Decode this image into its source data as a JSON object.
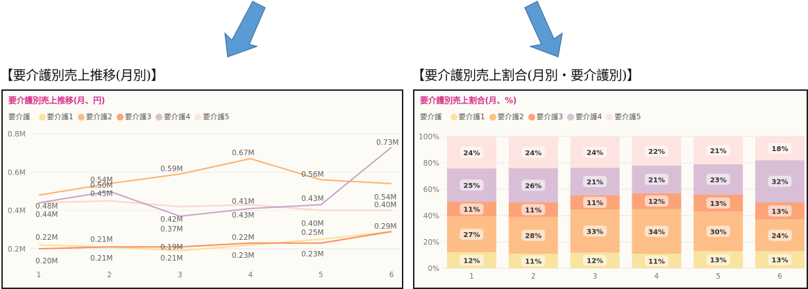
{
  "headings": {
    "left": "【要介護別売上推移(月別)】",
    "right": "【要介護別売上割合(月別・要介護別)】"
  },
  "colors": {
    "arrow_fill": "#5b9bd5",
    "arrow_stroke": "#41719c",
    "title": "#d6338a",
    "series": {
      "要介護1": "#f9e3a0",
      "要介護2": "#fdbf87",
      "要介護3": "#fca37a",
      "要介護4": "#d9bfd6",
      "要介護5": "#fde4e0"
    },
    "line_series": {
      "要介護1": "#fbe08a",
      "要介護2": "#fbb46f",
      "要介護3": "#f98e62",
      "要介護4": "#c9a4cc",
      "要介護5": "#fbd9d3"
    }
  },
  "left_panel": {
    "title": "要介護別売上推移(月、円)",
    "legend_title": "要介護",
    "legend": [
      "要介護1",
      "要介護2",
      "要介護3",
      "要介護4",
      "要介護5"
    ]
  },
  "right_panel": {
    "title": "要介護別売上割合(月、%)",
    "legend_title": "要介護",
    "legend": [
      "要介護1",
      "要介護2",
      "要介護3",
      "要介護4",
      "要介護5"
    ]
  },
  "chart_data": [
    {
      "type": "line",
      "title": "要介護別売上推移(月、円)",
      "xlabel": "",
      "ylabel": "",
      "x": [
        1,
        2,
        3,
        4,
        5,
        6
      ],
      "ylim": [
        0.1,
        0.8
      ],
      "yticks": [
        "0.2M",
        "0.4M",
        "0.6M",
        "0.8M"
      ],
      "ytick_values": [
        0.2,
        0.4,
        0.6,
        0.8
      ],
      "grid": true,
      "legend_position": "top",
      "series": [
        {
          "name": "要介護1",
          "values": [
            0.22,
            0.21,
            0.19,
            0.22,
            0.25,
            0.29
          ],
          "labels": [
            "0.22M",
            "0.21M",
            "0.19M",
            "0.22M",
            "0.25M",
            "0.29M"
          ]
        },
        {
          "name": "要介護2",
          "values": [
            0.48,
            0.54,
            0.59,
            0.67,
            0.56,
            0.54
          ],
          "labels": [
            "0.48M",
            "0.54M",
            "0.59M",
            "0.67M",
            "0.56M",
            "0.54M"
          ]
        },
        {
          "name": "要介護3",
          "values": [
            0.2,
            0.21,
            0.21,
            0.23,
            0.23,
            0.29
          ],
          "labels": [
            "0.20M",
            "0.21M",
            "0.21M",
            "0.23M",
            "0.23M",
            "0.29M"
          ]
        },
        {
          "name": "要介護4",
          "values": [
            0.44,
            0.5,
            0.37,
            0.41,
            0.43,
            0.73
          ],
          "labels": [
            "0.44M",
            "0.50M",
            "0.37M",
            "0.41M",
            "0.43M",
            "0.73M"
          ]
        },
        {
          "name": "要介護5",
          "values": [
            0.44,
            0.45,
            0.42,
            0.43,
            0.4,
            0.4
          ],
          "labels": [
            "",
            "0.45M",
            "0.42M",
            "0.43M",
            "0.40M",
            "0.40M"
          ]
        }
      ]
    },
    {
      "type": "bar",
      "stacked": true,
      "title": "要介護別売上割合(月、%)",
      "xlabel": "",
      "ylabel": "",
      "categories": [
        "1",
        "2",
        "3",
        "4",
        "5",
        "6"
      ],
      "ylim": [
        0,
        100
      ],
      "yticks": [
        "0%",
        "20%",
        "40%",
        "60%",
        "80%",
        "100%"
      ],
      "grid": true,
      "legend_position": "top",
      "series": [
        {
          "name": "要介護1",
          "values": [
            12,
            11,
            12,
            11,
            13,
            13
          ]
        },
        {
          "name": "要介護2",
          "values": [
            27,
            28,
            33,
            34,
            30,
            24
          ]
        },
        {
          "name": "要介護3",
          "values": [
            11,
            11,
            11,
            12,
            13,
            13
          ]
        },
        {
          "name": "要介護4",
          "values": [
            25,
            26,
            21,
            21,
            23,
            32
          ]
        },
        {
          "name": "要介護5",
          "values": [
            24,
            24,
            24,
            22,
            21,
            18
          ]
        }
      ]
    }
  ]
}
